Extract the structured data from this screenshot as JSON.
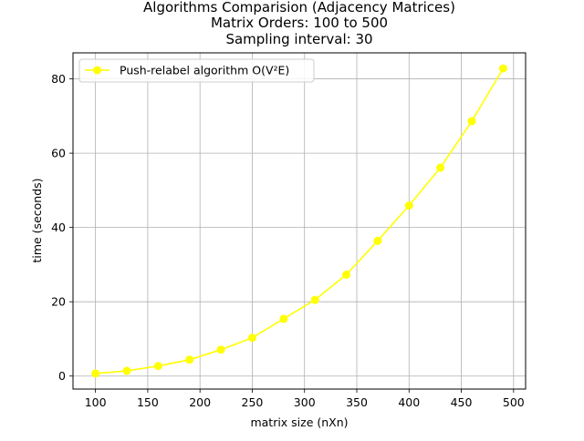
{
  "chart_data": {
    "type": "line",
    "title_lines": [
      "Algorithms Comparision (Adjacency Matrices)",
      "Matrix Orders: 100 to 500",
      "Sampling interval: 30"
    ],
    "xlabel": "matrix size (nXn)",
    "ylabel": "time (seconds)",
    "xlim": [
      78.5,
      511.5
    ],
    "ylim": [
      -3.5,
      87
    ],
    "x_ticks": [
      100,
      150,
      200,
      250,
      300,
      350,
      400,
      450,
      500
    ],
    "y_ticks": [
      0,
      20,
      40,
      60,
      80
    ],
    "grid": true,
    "legend_position": "top-left",
    "series": [
      {
        "name": "Push-relabel algorithm O(V²E)",
        "color": "#ffff00",
        "x": [
          100,
          130,
          160,
          190,
          220,
          250,
          280,
          310,
          340,
          370,
          400,
          430,
          460,
          490
        ],
        "y": [
          0.7,
          1.4,
          2.7,
          4.4,
          7.1,
          10.3,
          15.4,
          20.5,
          27.3,
          36.4,
          45.9,
          56.1,
          68.6,
          82.8
        ]
      }
    ]
  }
}
